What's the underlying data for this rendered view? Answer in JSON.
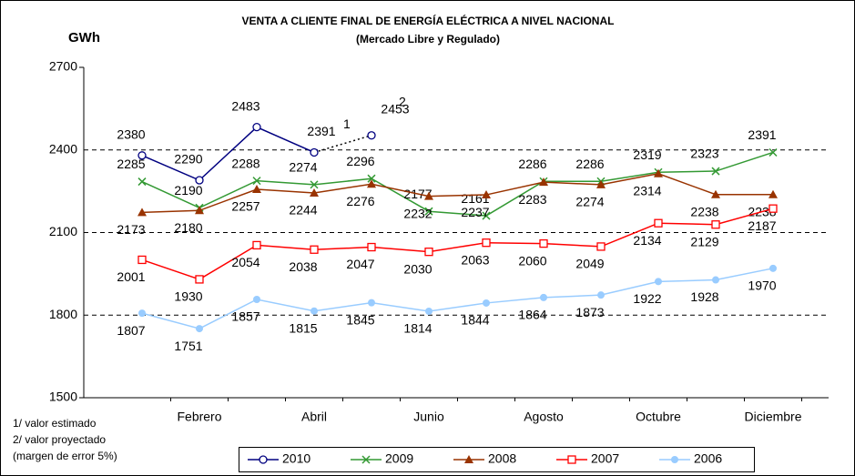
{
  "chart_data": {
    "type": "line",
    "title": "VENTA A CLIENTE FINAL DE ENERGÍA ELÉCTRICA A NIVEL NACIONAL",
    "subtitle": "(Mercado Libre y Regulado)",
    "y_label": "GWh",
    "categories": [
      null,
      "Febrero",
      null,
      "Abril",
      null,
      "Junio",
      null,
      "Agosto",
      null,
      "Octubre",
      null,
      "Diciembre"
    ],
    "ylim": [
      1500,
      2700
    ],
    "yticks": [
      1500,
      1800,
      2100,
      2400,
      2700
    ],
    "grid": true,
    "series": [
      {
        "name": "2010",
        "color": "#000080",
        "marker": "circle-open",
        "dotted_from": 3,
        "values": [
          2380,
          2290,
          2483,
          2391,
          2453,
          null,
          null,
          null,
          null,
          null,
          null,
          null
        ]
      },
      {
        "name": "2009",
        "color": "#339933",
        "marker": "x",
        "values": [
          2285,
          2190,
          2288,
          2274,
          2296,
          2177,
          2161,
          2286,
          2286,
          2319,
          2323,
          2391
        ]
      },
      {
        "name": "2008",
        "color": "#993300",
        "marker": "triangle",
        "values": [
          2173,
          2180,
          2257,
          2244,
          2276,
          2232,
          2237,
          2283,
          2274,
          2314,
          2238,
          2238
        ]
      },
      {
        "name": "2007",
        "color": "#ff0000",
        "marker": "square-open",
        "values": [
          2001,
          1930,
          2054,
          2038,
          2047,
          2030,
          2063,
          2060,
          2049,
          2134,
          2129,
          2187
        ]
      },
      {
        "name": "2006",
        "color": "#99ccff",
        "marker": "circle",
        "values": [
          1807,
          1751,
          1857,
          1815,
          1845,
          1814,
          1844,
          1864,
          1873,
          1922,
          1928,
          1970
        ]
      }
    ],
    "annotations": [
      "1",
      "2"
    ],
    "notes": [
      "1/ valor estimado",
      "2/ valor proyectado",
      "(margen de error 5%)"
    ],
    "legend": "bottom"
  }
}
